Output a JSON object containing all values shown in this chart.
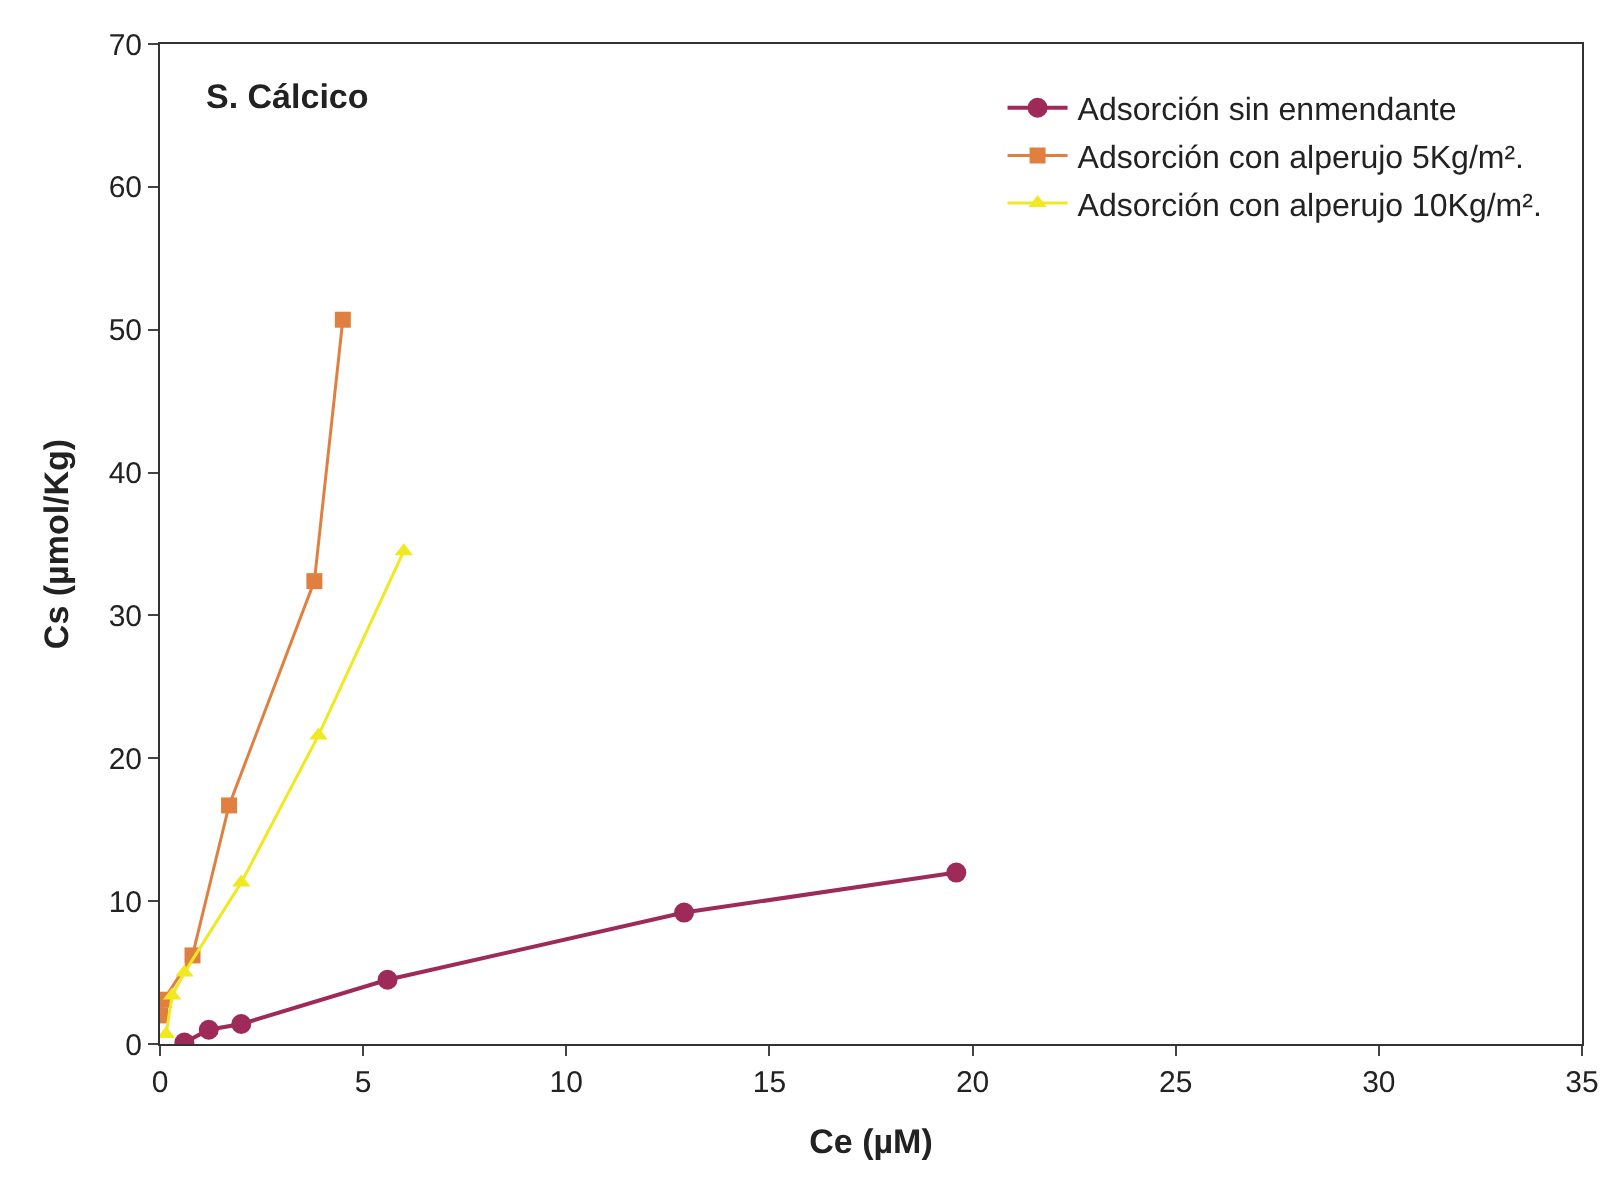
{
  "chart_data": {
    "type": "line",
    "xlabel": "Ce (µM)",
    "ylabel": "Cs (µmol/Kg)",
    "annotations": [
      "S. Cálcico"
    ],
    "xlim": [
      0,
      35
    ],
    "xticks": [
      0,
      5,
      10,
      15,
      20,
      25,
      30,
      35
    ],
    "ylim": [
      0,
      70
    ],
    "yticks": [
      0,
      10,
      20,
      30,
      40,
      50,
      60,
      70
    ],
    "legend": "top right",
    "line_style": "solid",
    "series": [
      {
        "name": "Adsorción sin enmendante",
        "color": "#9e2a5a",
        "marker": "circle",
        "x": [
          0.6,
          1.2,
          2.0,
          5.6,
          12.9,
          19.6
        ],
        "values": [
          0.1,
          1.0,
          1.4,
          4.5,
          9.2,
          12.0
        ]
      },
      {
        "name": "Adsorción con alperujo 5Kg/m².",
        "color": "#e08040",
        "marker": "square",
        "x": [
          0.0,
          0.1,
          0.8,
          1.7,
          3.8,
          4.5
        ],
        "values": [
          2.0,
          3.1,
          6.2,
          16.7,
          32.4,
          50.7
        ]
      },
      {
        "name": "Adsorción con alperujo 10Kg/m².",
        "color": "#f0e820",
        "marker": "triangle",
        "x": [
          0.15,
          0.3,
          0.6,
          2.0,
          3.9,
          6.0
        ],
        "values": [
          0.7,
          3.4,
          5.0,
          11.3,
          21.6,
          34.5
        ]
      }
    ]
  }
}
